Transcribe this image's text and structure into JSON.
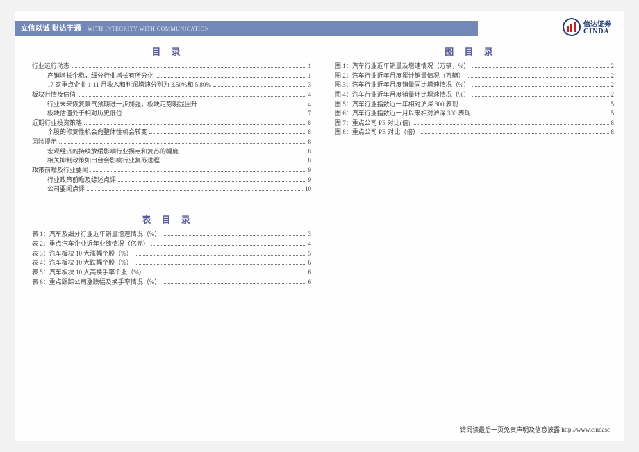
{
  "header": {
    "motto_cn": "立信以诚  财达于通",
    "motto_en": "WITH INTEGRITY  WITH COMMUNICATION",
    "logo_text_cn": "信达证券",
    "logo_text_en": "CINDA"
  },
  "colors": {
    "header_bg": "#7289b8",
    "title_color": "#5b5b99",
    "logo_red": "#c02020",
    "logo_blue": "#1e3a6e"
  },
  "toc_main": {
    "title": "目 录",
    "items": [
      {
        "label": "行业运行动态",
        "page": "1",
        "level": 1
      },
      {
        "label": "产销增长企稳，细分行业增长有所分化",
        "page": "1",
        "level": 2
      },
      {
        "label": "17 家重点企业 1-11 月收入和利润增速分别为 3.50%和 5.80%",
        "page": "3",
        "level": 2
      },
      {
        "label": "板块行情及估值",
        "page": "4",
        "level": 1
      },
      {
        "label": "行业未来恢复景气预期进一步加强，板块走势明显回升",
        "page": "4",
        "level": 2
      },
      {
        "label": "板块估值处于相对历史低位",
        "page": "7",
        "level": 2
      },
      {
        "label": "近期行业投资策略",
        "page": "8",
        "level": 1
      },
      {
        "label": "个股的修复性机会向整体性机会转变",
        "page": "8",
        "level": 2
      },
      {
        "label": "风险提示",
        "page": "8",
        "level": 1
      },
      {
        "label": "宏观经济的持续放缓影响行业拐点和复苏的幅度",
        "page": "8",
        "level": 2
      },
      {
        "label": "相关抑制政策如出台会影响行业复苏进程",
        "page": "8",
        "level": 2
      },
      {
        "label": "政策前瞻及行业要闻",
        "page": "9",
        "level": 1
      },
      {
        "label": "行业政策前瞻及综述点评",
        "page": "9",
        "level": 2
      },
      {
        "label": "公司要闻点评",
        "page": "10",
        "level": 2
      }
    ]
  },
  "toc_tables": {
    "title": "表 目 录",
    "items": [
      {
        "label": "表 1：汽车及细分行业近年销量增速情况（%）",
        "page": "3",
        "level": 1
      },
      {
        "label": "表 2：重点汽车企业近年业绩情况（亿元）",
        "page": "4",
        "level": 1
      },
      {
        "label": "表 3：汽车板块 10 大涨幅个股（%）",
        "page": "5",
        "level": 1
      },
      {
        "label": "表 4：汽车板块 10 大跌幅个股（%）",
        "page": "6",
        "level": 1
      },
      {
        "label": "表 5：汽车板块 10 大高换手率个股（%）",
        "page": "6",
        "level": 1
      },
      {
        "label": "表 6：重点跟踪公司涨跌幅及换手率情况（%）",
        "page": "6",
        "level": 1
      }
    ]
  },
  "toc_figures": {
    "title": "图 目 录",
    "items": [
      {
        "label": "图 1：汽车行业近年销量及增速情况（万辆，%）",
        "page": "2",
        "level": 1
      },
      {
        "label": "图 2：汽车行业近年月度累计销量情况（万辆）",
        "page": "2",
        "level": 1
      },
      {
        "label": "图 3：汽车行业近年月度销量同比增速情况（%）",
        "page": "2",
        "level": 1
      },
      {
        "label": "图 4：汽车行业近年月度销量环比增速情况（%）",
        "page": "2",
        "level": 1
      },
      {
        "label": "图 5：汽车行业指数近一年相对沪深 300 表现",
        "page": "5",
        "level": 1
      },
      {
        "label": "图 6：汽车行业指数近一月以来相对沪深 300 表现",
        "page": "5",
        "level": 1
      },
      {
        "label": "图 7：重点公司 PE 对比(倍)",
        "page": "8",
        "level": 1
      },
      {
        "label": "图 8：重点公司 PB 对比（倍）",
        "page": "8",
        "level": 1
      }
    ]
  },
  "footer": {
    "text": "请阅读最后一页免责声明及信息披露  http://www.cindasc"
  }
}
